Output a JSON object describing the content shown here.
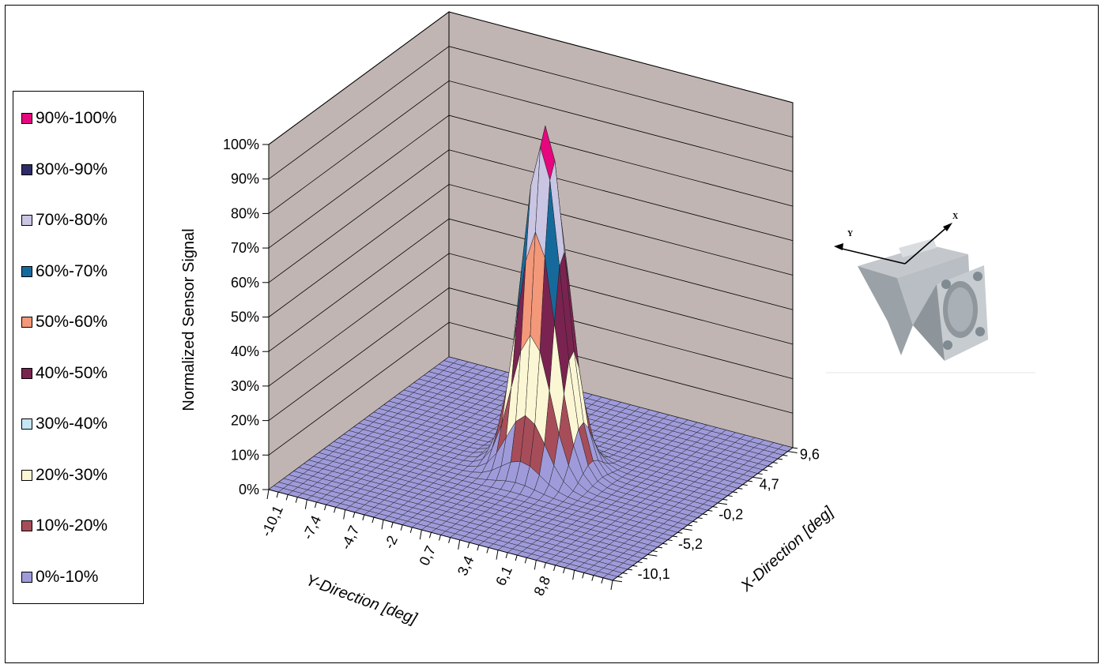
{
  "chart_data": {
    "type": "surface3d",
    "zlabel": "Normalized Sensor Signal",
    "ylabel": "Y-Direction [deg]",
    "xlabel": "X-Direction [deg]",
    "z_ticks": [
      "0%",
      "10%",
      "20%",
      "30%",
      "40%",
      "50%",
      "60%",
      "70%",
      "80%",
      "90%",
      "100%"
    ],
    "zlim": [
      0,
      100
    ],
    "y_ticks": [
      "-10,1",
      "-7,4",
      "-4,7",
      "-2",
      "0,7",
      "3,4",
      "6,1",
      "8,8"
    ],
    "x_ticks": [
      "-10,1",
      "-5,2",
      "-0,2",
      "4,7",
      "9,6"
    ],
    "grid": true,
    "legend_position": "left",
    "legend": [
      {
        "label": "90%-100%",
        "color": "#e6067e"
      },
      {
        "label": "80%-90%",
        "color": "#2e2b66"
      },
      {
        "label": "70%-80%",
        "color": "#c9c5e3"
      },
      {
        "label": "60%-70%",
        "color": "#166a9b"
      },
      {
        "label": "50%-60%",
        "color": "#f4987a"
      },
      {
        "label": "40%-50%",
        "color": "#7a2350"
      },
      {
        "label": "30%-40%",
        "color": "#c5e6f5"
      },
      {
        "label": "20%-30%",
        "color": "#fbf7d4"
      },
      {
        "label": "10%-20%",
        "color": "#a74d5a"
      },
      {
        "label": "0%-10%",
        "color": "#9f9bdb"
      }
    ],
    "peak": {
      "x": 0,
      "y": 0,
      "z": 100
    },
    "inset": {
      "axis_x": "X",
      "axis_y": "Y"
    }
  }
}
